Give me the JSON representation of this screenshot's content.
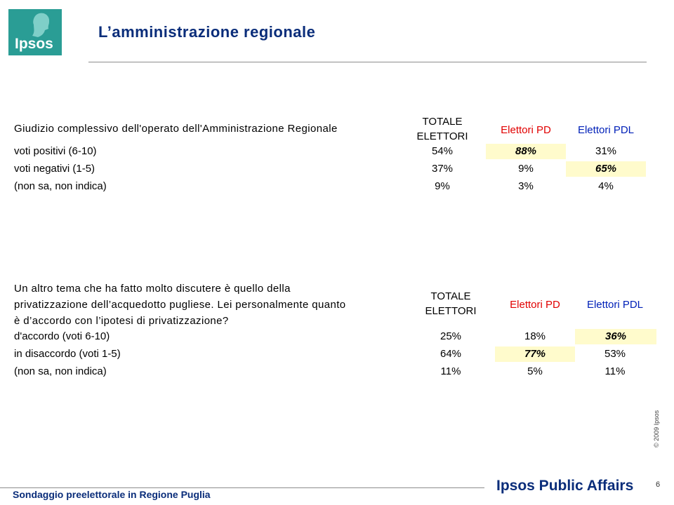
{
  "header": {
    "logo_text": "Ipsos",
    "title": "L’amministrazione regionale"
  },
  "table1": {
    "question": "Giudizio complessivo dell'operato dell'Amministrazione Regionale",
    "col_totale_line1": "TOTALE",
    "col_totale_line2": "ELETTORI",
    "col_pd": "Elettori PD",
    "col_pdl": "Elettori PDL",
    "rows": [
      {
        "label": "voti positivi (6-10)",
        "totale": "54%",
        "pd": "88%",
        "pdl": "31%"
      },
      {
        "label": "voti negativi (1-5)",
        "totale": "37%",
        "pd": "9%",
        "pdl": "65%"
      },
      {
        "label": "(non sa, non indica)",
        "totale": "9%",
        "pd": "3%",
        "pdl": "4%"
      }
    ]
  },
  "table2": {
    "question_line1": "Un altro tema che ha fatto molto discutere è quello della",
    "question_line2": "privatizzazione dell’acquedotto pugliese. Lei personalmente quanto",
    "question_line3": "è d’accordo con l’ipotesi di privatizzazione?",
    "col_totale_line1": "TOTALE",
    "col_totale_line2": "ELETTORI",
    "col_pd": "Elettori PD",
    "col_pdl": "Elettori PDL",
    "rows": [
      {
        "label": "d'accordo (voti 6-10)",
        "totale": "25%",
        "pd": "18%",
        "pdl": "36%"
      },
      {
        "label": "in disaccordo (voti 1-5)",
        "totale": "64%",
        "pd": "77%",
        "pdl": "53%"
      },
      {
        "label": "(non sa, non indica)",
        "totale": "11%",
        "pd": "5%",
        "pdl": "11%"
      }
    ]
  },
  "footer": {
    "copyright": "© 2009 Ipsos",
    "survey": "Sondaggio preelettorale in Regione Puglia",
    "brand": "Ipsos Public Affairs",
    "page_number": "6"
  },
  "colors": {
    "brand_teal": "#2a9d95",
    "title_navy": "#0a2d7a",
    "pd_red": "#e10000",
    "pdl_blue": "#0020b8",
    "highlight": "#fffbcc"
  }
}
